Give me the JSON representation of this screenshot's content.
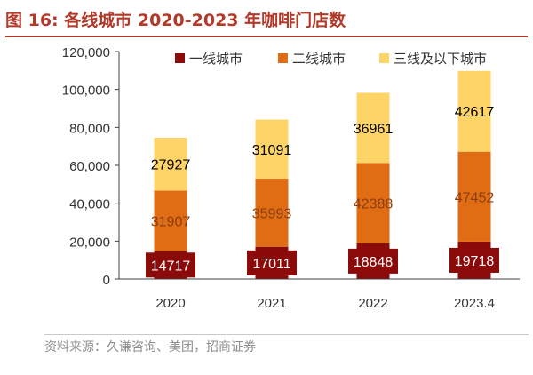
{
  "figure": {
    "title": "图 16: 各线城市 2020-2023 年咖啡门店数",
    "source": "资料来源：久谦咨询、美团，招商证券"
  },
  "chart_data": {
    "type": "bar",
    "stacked": true,
    "categories": [
      "2020",
      "2021",
      "2022",
      "2023.4"
    ],
    "series": [
      {
        "name": "一线城市",
        "color": "#8b0a0a",
        "values": [
          14717,
          17011,
          18848,
          19718
        ]
      },
      {
        "name": "二线城市",
        "color": "#e06d13",
        "values": [
          31907,
          35993,
          42388,
          47452
        ]
      },
      {
        "name": "三线及以下城市",
        "color": "#ffd466",
        "values": [
          27927,
          31091,
          36961,
          42617
        ]
      }
    ],
    "yticks": [
      "0",
      "20,000",
      "40,000",
      "60,000",
      "80,000",
      "100,000",
      "120,000"
    ],
    "ylim": [
      0,
      120000
    ],
    "legend_position": "top",
    "grid": false
  }
}
